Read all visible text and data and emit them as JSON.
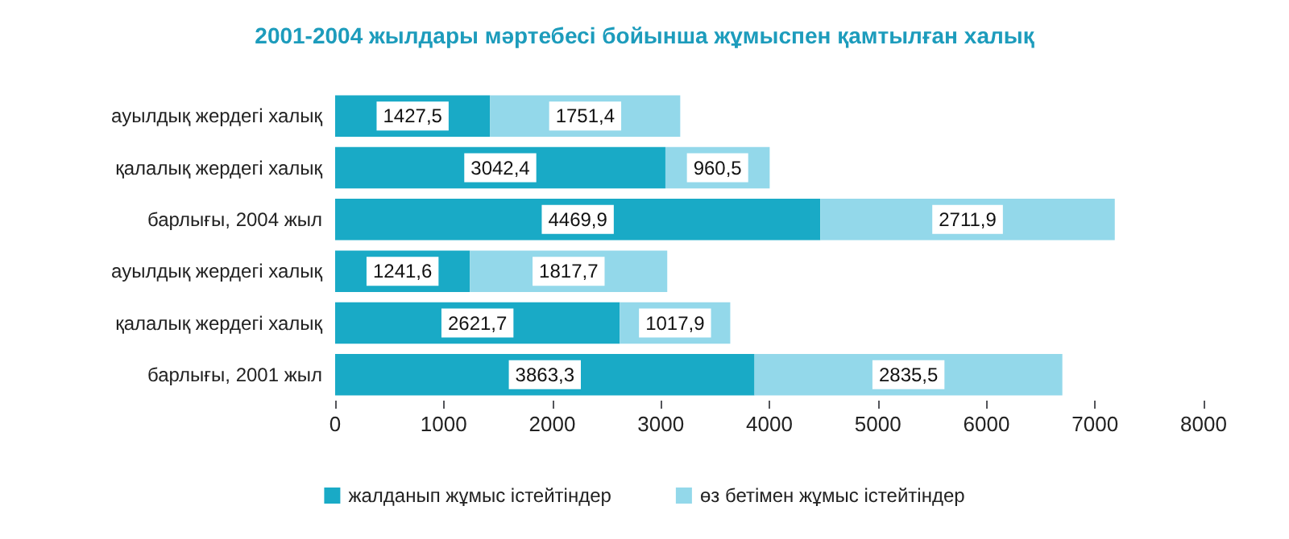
{
  "chart_data": {
    "type": "bar",
    "orientation": "horizontal",
    "stacked": true,
    "title": "2001-2004 жылдары мәртебесі бойынша жұмыспен қамтылған халық",
    "categories": [
      "ауылдық жердегі халық",
      "қалалық жердегі халық",
      "барлығы, 2004 жыл",
      "ауылдық жердегі халық",
      "қалалық жердегі халық",
      "барлығы, 2001 жыл"
    ],
    "series": [
      {
        "name": "жалданып жұмыс істейтіндер",
        "color": "#19aac6",
        "values": [
          1427.5,
          3042.4,
          4469.9,
          1241.6,
          2621.7,
          3863.3
        ],
        "value_labels": [
          "1427,5",
          "3042,4",
          "4469,9",
          "1241,6",
          "2621,7",
          "3863,3"
        ]
      },
      {
        "name": "өз бетімен жұмыс істейтіндер",
        "color": "#93d8ea",
        "values": [
          1751.4,
          960.5,
          2711.9,
          1817.7,
          1017.9,
          2835.5
        ],
        "value_labels": [
          "1751,4",
          "960,5",
          "2711,9",
          "1817,7",
          "1017,9",
          "2835,5"
        ]
      }
    ],
    "xlim": [
      0,
      8000
    ],
    "xticks": [
      0,
      1000,
      2000,
      3000,
      4000,
      5000,
      6000,
      7000,
      8000
    ],
    "grid": false,
    "legend": "bottom"
  }
}
